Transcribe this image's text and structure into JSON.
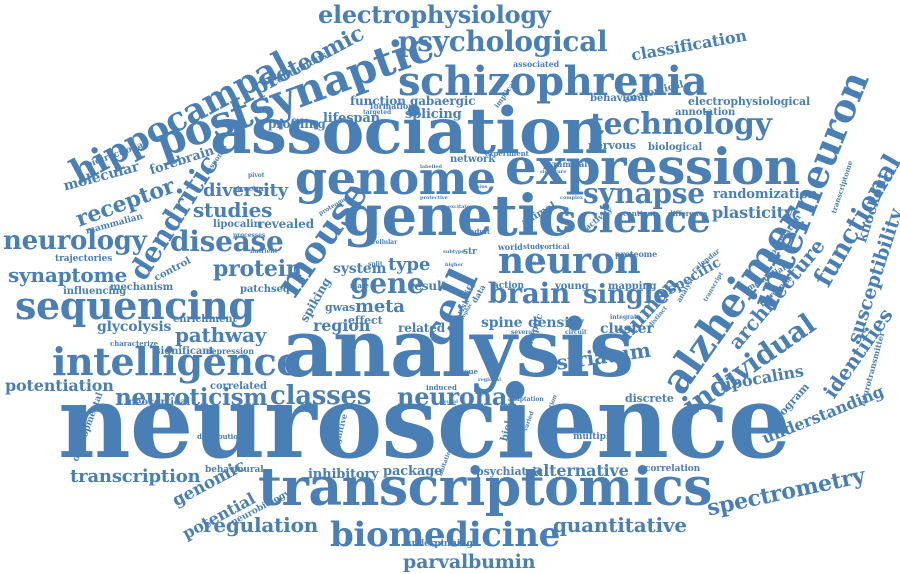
{
  "colors": {
    "word": "#4a7fb5",
    "background": "#ffffff"
  },
  "words": [
    "neuroscience",
    "analysis",
    "association",
    "expression",
    "genetic",
    "transcriptomics",
    "genome",
    "schizophrenia",
    "postsynaptic",
    "biomedicine",
    "intelligence",
    "sequencing",
    "alzheimer",
    "interneuron",
    "hippocampal",
    "science",
    "neuron",
    "mouse",
    "cell",
    "brain",
    "technology",
    "psychological",
    "electrophysiology",
    "individual",
    "neuroticism",
    "classes",
    "synapse",
    "dendritic",
    "disease",
    "neurology",
    "spectrometry",
    "gene",
    "single",
    "proteomic",
    "receptor",
    "protein",
    "studies",
    "synaptome",
    "functional",
    "susceptibility",
    "architecture",
    "regulation",
    "transcription",
    "quantitative",
    "parvalbumin",
    "striatum",
    "neuronal",
    "potentiation",
    "classification",
    "identifies",
    "human",
    "diversity",
    "genomic",
    "pathway",
    "lipocalins",
    "understanding",
    "alternative",
    "inhibitory",
    "package",
    "psychiatric",
    "knockout",
    "region",
    "spine",
    "density",
    "type",
    "meta",
    "system",
    "glycolysis",
    "specific",
    "plasticity",
    "randomization",
    "cluster",
    "molecular",
    "forebrain",
    "profiling",
    "lifespan",
    "splicing",
    "function",
    "gabaergic",
    "nervous",
    "biological",
    "electrophysiological",
    "annotation",
    "anatomical",
    "behavioral",
    "continuous",
    "network",
    "revealed",
    "lipocalin",
    "mechanism",
    "influencing",
    "trajectories",
    "mammalian",
    "bidirectional",
    "enrichment",
    "patchseq",
    "result",
    "related",
    "effect",
    "gwas",
    "spiking",
    "control",
    "correlated",
    "neocortical",
    "significant",
    "depression",
    "potential",
    "neurobiology",
    "behavioural",
    "underpinning",
    "developmental",
    "distribution",
    "program",
    "neurotransmitter",
    "correlation",
    "multiple",
    "discrete",
    "adaptation",
    "induced",
    "tissue",
    "biology",
    "cognitive",
    "imitation",
    "mapping",
    "young",
    "action",
    "world",
    "study",
    "cortical",
    "adult",
    "life",
    "risk",
    "data",
    "activity",
    "continua",
    "difference",
    "animal",
    "pyramidal",
    "implicate",
    "targeted",
    "structure",
    "response",
    "experiment",
    "formation",
    "associated",
    "transcriptome",
    "mendelian",
    "reorganise",
    "population",
    "calendar",
    "analyse",
    "transcript",
    "integrate",
    "distinct",
    "circuit",
    "several",
    "male",
    "split",
    "str",
    "proteome",
    "synaptic",
    "regional",
    "characterize",
    "proteomes",
    "processes",
    "varied",
    "variation",
    "visual",
    "labelled",
    "signature",
    "protective",
    "complex",
    "excitatory",
    "subtype",
    "cellular",
    "dystrophic",
    "neural",
    "higher",
    "slice",
    "brains",
    "nutrient",
    "pivot",
    "stressor",
    "sensory",
    "cochlear",
    "mass",
    "cohort",
    "efficient",
    "factor"
  ]
}
